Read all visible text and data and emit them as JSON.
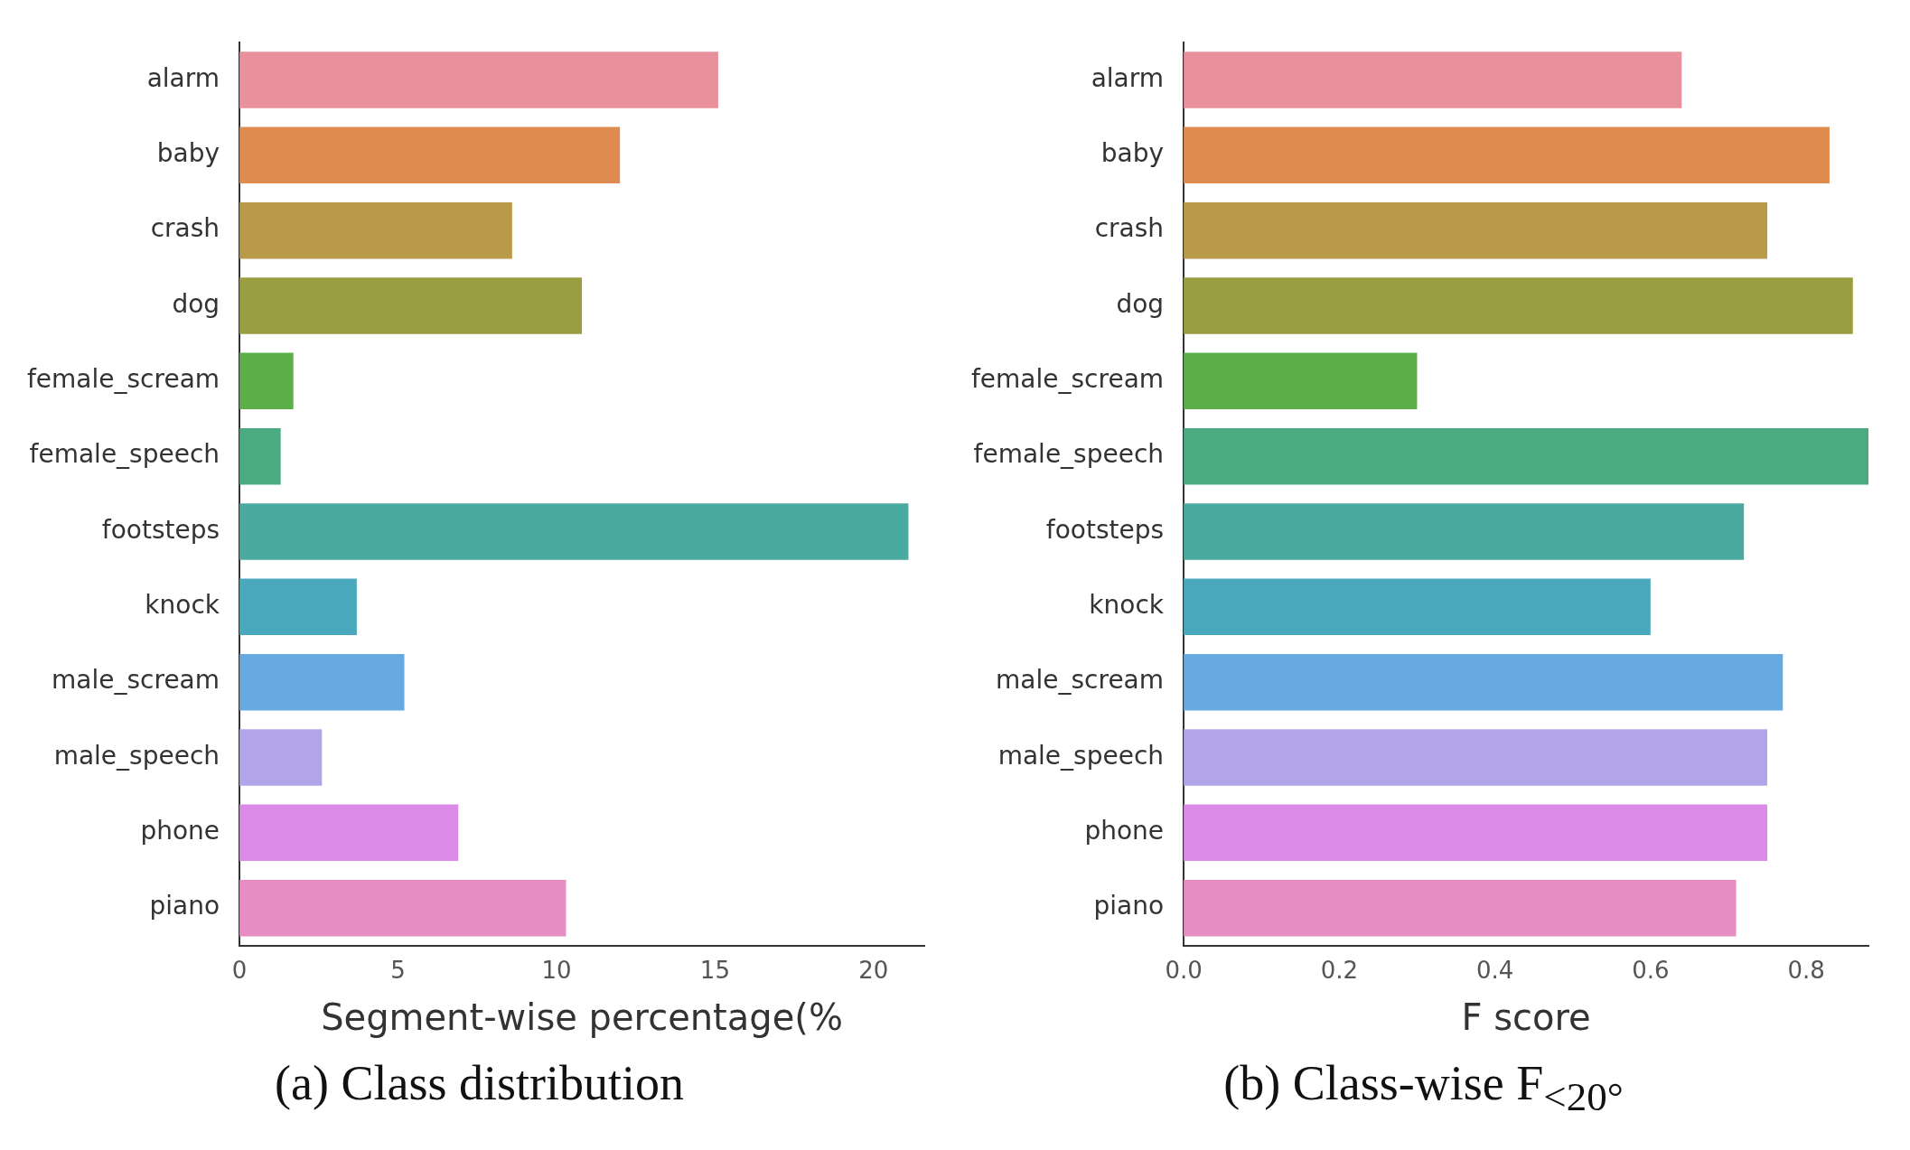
{
  "chart_data": [
    {
      "type": "bar",
      "orientation": "horizontal",
      "title": "(a) Class distribution",
      "xlabel": "Segment-wise percentage(%",
      "categories": [
        "alarm",
        "baby",
        "crash",
        "dog",
        "female_scream",
        "female_speech",
        "footsteps",
        "knock",
        "male_scream",
        "male_speech",
        "phone",
        "piano"
      ],
      "values": [
        15.1,
        12.0,
        8.6,
        10.8,
        1.7,
        1.3,
        21.1,
        3.7,
        5.2,
        2.6,
        6.9,
        10.3
      ],
      "colors": [
        "#e8909c",
        "#e08c50",
        "#b89a48",
        "#9a9e40",
        "#5bae48",
        "#4aaa80",
        "#4aaaa0",
        "#4aa8bc",
        "#68aae0",
        "#b2a4e8",
        "#dc8ae8",
        "#e88cc4"
      ],
      "xlim": [
        0,
        21.6
      ],
      "xticks": [
        0,
        5,
        10,
        15,
        20
      ],
      "grid": false,
      "legend": false
    },
    {
      "type": "bar",
      "orientation": "horizontal",
      "title": "(b) Class-wise F$_{<20°}$",
      "xlabel": "F score",
      "categories": [
        "alarm",
        "baby",
        "crash",
        "dog",
        "female_scream",
        "female_speech",
        "footsteps",
        "knock",
        "male_scream",
        "male_speech",
        "phone",
        "piano"
      ],
      "values": [
        0.64,
        0.83,
        0.75,
        0.86,
        0.3,
        0.88,
        0.72,
        0.6,
        0.77,
        0.75,
        0.75,
        0.71
      ],
      "colors": [
        "#e8909c",
        "#e08c50",
        "#b89a48",
        "#9a9e40",
        "#5bae48",
        "#4aaa80",
        "#4aaaa0",
        "#4aa8bc",
        "#68aae0",
        "#b2a4e8",
        "#dc8ae8",
        "#e88cc4"
      ],
      "xlim": [
        0,
        0.88
      ],
      "xticks": [
        {
          "value": 0,
          "label": "0.0"
        },
        {
          "value": 0.2,
          "label": "0.2"
        },
        {
          "value": 0.4,
          "label": "0.4"
        },
        {
          "value": 0.6,
          "label": "0.6"
        },
        {
          "value": 0.8,
          "label": "0.8"
        }
      ],
      "grid": false,
      "legend": false
    }
  ]
}
